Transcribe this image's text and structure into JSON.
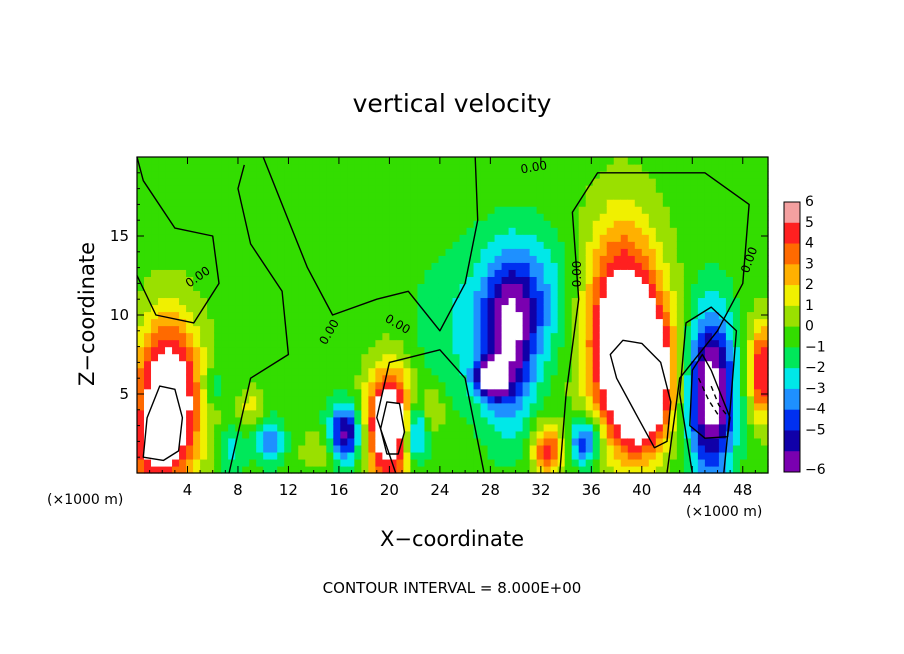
{
  "chart_data": {
    "type": "heatmap",
    "title": "vertical velocity",
    "xlabel": "X−coordinate",
    "ylabel": "Z−coordinate",
    "x_unit": "(×1000 m)",
    "x_unit_right": "(×1000 m)",
    "xlim": [
      0,
      50
    ],
    "ylim": [
      0,
      20
    ],
    "xticks": [
      4,
      8,
      12,
      16,
      20,
      24,
      28,
      32,
      36,
      40,
      44,
      48
    ],
    "yticks": [
      5,
      10,
      15
    ],
    "colorbar": {
      "ticks": [
        "6",
        "5",
        "4",
        "3",
        "2",
        "1",
        "0",
        "−1",
        "−2",
        "−3",
        "−4",
        "−5",
        "−6"
      ],
      "range": [
        -6,
        6
      ],
      "colors": [
        "#f4a0a0",
        "#ff2020",
        "#ff6a00",
        "#ffb000",
        "#f0f000",
        "#9ae000",
        "#33dd00",
        "#00e85a",
        "#00e8e8",
        "#1e90ff",
        "#0030f0",
        "#1000a8",
        "#7a00b0"
      ]
    },
    "contour_labels": [
      "0.00",
      "0.00",
      "0.00",
      "0.00",
      "0.00",
      "0.00"
    ],
    "background_value": 0.5,
    "features": [
      {
        "x": 2.5,
        "z": 4.5,
        "rx": 2.5,
        "rz": 5,
        "value": 9
      },
      {
        "x": 1.0,
        "z": 1.5,
        "rx": 1.5,
        "rz": 2,
        "value": 3
      },
      {
        "x": 20.0,
        "z": 3.0,
        "rx": 1.8,
        "rz": 3.5,
        "value": 9
      },
      {
        "x": 38.5,
        "z": 9.0,
        "rx": 3.0,
        "rz": 6.5,
        "value": 8
      },
      {
        "x": 40.0,
        "z": 6.0,
        "rx": 2.2,
        "rz": 4.0,
        "value": 10
      },
      {
        "x": 32.5,
        "z": 1.5,
        "rx": 1.2,
        "rz": 1.6,
        "value": 5
      },
      {
        "x": 49.5,
        "z": 6.5,
        "rx": 1.0,
        "rz": 3.0,
        "value": 6
      },
      {
        "x": 23.5,
        "z": 4.0,
        "rx": 1.0,
        "rz": 1.5,
        "value": 2
      },
      {
        "x": 9.0,
        "z": 4.2,
        "rx": 1.0,
        "rz": 1.2,
        "value": 2
      },
      {
        "x": 14.5,
        "z": 1.5,
        "rx": 1.5,
        "rz": 1.2,
        "value": 1.5
      },
      {
        "x": 29.5,
        "z": 8.0,
        "rx": 2.0,
        "rz": 5.0,
        "value": -5
      },
      {
        "x": 31.0,
        "z": 11.0,
        "rx": 3.5,
        "rz": 4.0,
        "value": -3
      },
      {
        "x": 26.0,
        "z": 9.0,
        "rx": 4.0,
        "rz": 5.0,
        "value": -1.5
      },
      {
        "x": 45.5,
        "z": 5.0,
        "rx": 1.8,
        "rz": 5.0,
        "value": -8
      },
      {
        "x": 16.5,
        "z": 2.5,
        "rx": 1.3,
        "rz": 1.8,
        "value": -6
      },
      {
        "x": 22.0,
        "z": 2.5,
        "rx": 1.0,
        "rz": 2.0,
        "value": -5
      },
      {
        "x": 35.5,
        "z": 2.0,
        "rx": 1.2,
        "rz": 1.5,
        "value": -5
      },
      {
        "x": 28.0,
        "z": 6.0,
        "rx": 1.2,
        "rz": 1.2,
        "value": -6
      },
      {
        "x": 7.5,
        "z": 1.5,
        "rx": 1.0,
        "rz": 1.5,
        "value": -2
      },
      {
        "x": 10.5,
        "z": 2.0,
        "rx": 1.2,
        "rz": 1.5,
        "value": -3
      },
      {
        "x": 6.0,
        "z": 5.5,
        "rx": 1.0,
        "rz": 1.2,
        "value": -2
      }
    ],
    "zero_contours": [
      [
        [
          7.3,
          0
        ],
        [
          8.0,
          2.5
        ],
        [
          9.0,
          6.0
        ],
        [
          12.0,
          7.5
        ],
        [
          11.5,
          11.5
        ],
        [
          9.0,
          14.5
        ],
        [
          8.0,
          18.0
        ],
        [
          8.5,
          19.5
        ]
      ],
      [
        [
          20.5,
          0
        ],
        [
          19.0,
          3.5
        ],
        [
          20.0,
          7.0
        ],
        [
          24.0,
          7.8
        ],
        [
          26.0,
          6.0
        ],
        [
          27.5,
          0
        ]
      ],
      [
        [
          26.8,
          20
        ],
        [
          27.0,
          16.0
        ],
        [
          26.0,
          12.0
        ],
        [
          24.0,
          9.0
        ],
        [
          21.5,
          11.5
        ],
        [
          19.0,
          11.0
        ],
        [
          15.5,
          10.0
        ],
        [
          13.5,
          13.0
        ],
        [
          12.0,
          16.0
        ],
        [
          10.0,
          20
        ]
      ],
      [
        [
          33.5,
          0
        ],
        [
          34.0,
          5.0
        ],
        [
          35.0,
          11.0
        ],
        [
          34.5,
          16.5
        ],
        [
          36.5,
          19.0
        ],
        [
          45.0,
          19.0
        ],
        [
          48.5,
          17.0
        ],
        [
          48.0,
          12.0
        ],
        [
          46.0,
          9.0
        ],
        [
          43.0,
          6.0
        ],
        [
          42.0,
          0
        ]
      ],
      [
        [
          44.0,
          0
        ],
        [
          43.0,
          5.0
        ],
        [
          43.5,
          9.5
        ],
        [
          45.5,
          10.5
        ],
        [
          47.5,
          9.0
        ],
        [
          47.0,
          4.0
        ],
        [
          46.5,
          0
        ]
      ],
      [
        [
          0,
          12.5
        ],
        [
          1.5,
          10.0
        ],
        [
          4.5,
          9.5
        ],
        [
          6.5,
          12.0
        ],
        [
          6.0,
          15.0
        ],
        [
          3.0,
          15.5
        ],
        [
          0.5,
          18.5
        ],
        [
          0,
          20
        ]
      ]
    ],
    "neg_dashed_contours": [
      [
        [
          44.5,
          6.0
        ],
        [
          45.3,
          4.6
        ],
        [
          46.2,
          3.5
        ]
      ],
      [
        [
          45.5,
          5.5
        ],
        [
          46.1,
          4.3
        ],
        [
          46.8,
          3.6
        ]
      ]
    ],
    "outer_contours": [
      [
        [
          0.5,
          1.0
        ],
        [
          0.8,
          3.5
        ],
        [
          1.8,
          5.5
        ],
        [
          3.0,
          5.3
        ],
        [
          3.6,
          3.5
        ],
        [
          3.3,
          1.4
        ],
        [
          2.1,
          0.8
        ]
      ],
      [
        [
          19.8,
          1.2
        ],
        [
          19.3,
          2.8
        ],
        [
          19.8,
          4.5
        ],
        [
          20.8,
          4.4
        ],
        [
          21.2,
          2.6
        ],
        [
          20.7,
          1.2
        ]
      ],
      [
        [
          37.5,
          7.5
        ],
        [
          38.0,
          6.0
        ],
        [
          39.7,
          3.5
        ],
        [
          41.0,
          1.6
        ],
        [
          42.0,
          2.0
        ],
        [
          42.3,
          4.5
        ],
        [
          41.5,
          7.0
        ],
        [
          40.0,
          8.2
        ],
        [
          38.5,
          8.4
        ]
      ],
      [
        [
          43.8,
          3.0
        ],
        [
          44.0,
          6.5
        ],
        [
          44.8,
          7.5
        ],
        [
          45.5,
          6.5
        ],
        [
          47.0,
          3.5
        ],
        [
          46.8,
          2.3
        ],
        [
          45.0,
          2.2
        ]
      ]
    ]
  },
  "footer": {
    "contour_interval": "CONTOUR INTERVAL = 8.000E+00"
  }
}
